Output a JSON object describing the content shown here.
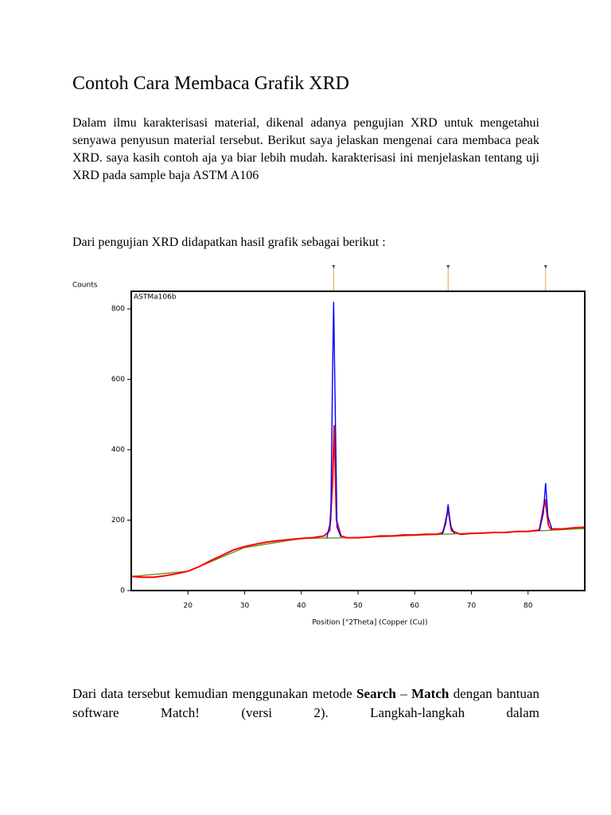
{
  "title": "Contoh Cara Membaca Grafik XRD",
  "paragraphs": [
    "Dalam ilmu karakterisasi material, dikenal adanya pengujian XRD untuk mengetahui senyawa penyusun material tersebut. Berikut saya jelaskan mengenai cara membaca peak XRD. saya kasih contoh aja ya biar lebih mudah. karakterisasi ini menjelaskan tentang uji XRD pada sample baja ASTM A106",
    "Dari pengujian XRD didapatkan hasil grafik sebagai berikut :"
  ],
  "closing": [
    "Dari data tersebut kemudian menggunakan metode ",
    "Search",
    " – ",
    "Match",
    " dengan bantuan software Match! (versi 2). Langkah-langkah dalam"
  ],
  "chart_data": {
    "type": "line",
    "ylabel": "Counts",
    "xlabel": "Position [°2Theta] (Copper (Cu))",
    "sample_label": "ASTMa106b",
    "xlim": [
      10,
      90
    ],
    "ylim": [
      0,
      850
    ],
    "xticks": [
      20,
      30,
      40,
      50,
      60,
      70,
      80
    ],
    "yticks": [
      0,
      200,
      400,
      600,
      800
    ],
    "reference_peaks": [
      45.7,
      65.9,
      83.1
    ],
    "reference_color": "#e8a23a",
    "series": [
      {
        "color": "#ff0000",
        "x": [
          10,
          12,
          14,
          16,
          18,
          20,
          22,
          24,
          26,
          28,
          30,
          32,
          34,
          36,
          38,
          40,
          42,
          44,
          45,
          45.5,
          45.8,
          46.2,
          47,
          48,
          50,
          52,
          54,
          56,
          58,
          60,
          62,
          64,
          65,
          65.9,
          66.5,
          68,
          70,
          72,
          74,
          76,
          78,
          80,
          82,
          83,
          83.6,
          84,
          86,
          88,
          90
        ],
        "values": [
          40,
          38,
          38,
          42,
          48,
          55,
          68,
          85,
          100,
          115,
          125,
          132,
          138,
          142,
          145,
          148,
          150,
          155,
          170,
          300,
          470,
          200,
          155,
          150,
          150,
          152,
          155,
          155,
          158,
          158,
          160,
          160,
          165,
          230,
          170,
          160,
          162,
          163,
          165,
          165,
          168,
          168,
          172,
          260,
          185,
          175,
          175,
          178,
          180
        ]
      },
      {
        "color": "#0000ff",
        "x": [
          44.5,
          45.2,
          45.5,
          45.7,
          45.9,
          46.3,
          47,
          48,
          64.8,
          65.5,
          65.9,
          66.3,
          67,
          68,
          82,
          82.7,
          83.1,
          83.5,
          84.2
        ],
        "values": [
          150,
          200,
          600,
          820,
          600,
          180,
          152,
          null,
          160,
          190,
          245,
          185,
          162,
          null,
          170,
          220,
          305,
          210,
          175
        ]
      },
      {
        "color": "#6b8e23",
        "x": [
          10,
          20,
          30,
          40,
          50,
          60,
          70,
          80,
          90
        ],
        "values": [
          40,
          55,
          122,
          148,
          150,
          157,
          163,
          168,
          176
        ]
      }
    ]
  }
}
